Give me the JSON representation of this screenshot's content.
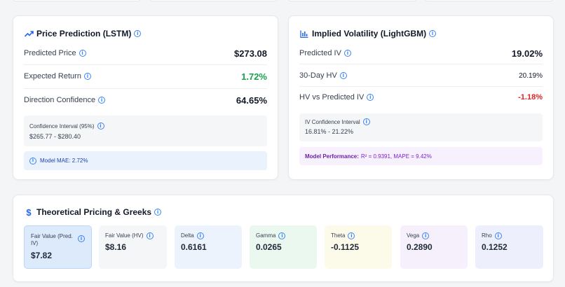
{
  "lstm": {
    "title": "Price Prediction (LSTM)",
    "rows": [
      {
        "label": "Predicted Price",
        "value": "$273.08"
      },
      {
        "label": "Expected Return",
        "value": "1.72%",
        "color": "#16a34a"
      },
      {
        "label": "Direction Confidence",
        "value": "64.65%"
      }
    ],
    "ci_label": "Confidence Interval (95%)",
    "ci_value": "$265.77 - $280.40",
    "mae": "Model MAE: 2.72%"
  },
  "iv": {
    "title": "Implied Volatility (LightGBM)",
    "rows": [
      {
        "label": "Predicted IV",
        "value": "19.02%"
      },
      {
        "label": "30-Day HV",
        "value": "20.19%"
      },
      {
        "label": "HV vs Predicted IV",
        "value": "-1.18%",
        "color": "#dc2626"
      }
    ],
    "ci_label": "IV Confidence Interval",
    "ci_value": "16.81% - 21.22%",
    "perf_label": "Model Performance:",
    "perf_value": "R² = 0.9391, MAPE = 9.42%"
  },
  "pricing": {
    "title": "Theoretical Pricing & Greeks",
    "cards": [
      {
        "label": "Fair Value (Pred. IV)",
        "value": "$7.82"
      },
      {
        "label": "Fair Value (HV)",
        "value": "$8.16"
      },
      {
        "label": "Delta",
        "value": "0.6161"
      },
      {
        "label": "Gamma",
        "value": "0.0265"
      },
      {
        "label": "Theta",
        "value": "-0.1125"
      },
      {
        "label": "Vega",
        "value": "0.2890"
      },
      {
        "label": "Rho",
        "value": "0.1252"
      }
    ]
  },
  "colors": {
    "accent": "#3b82f6",
    "positive": "#16a34a",
    "negative": "#dc2626",
    "performance": "#7e22ce"
  }
}
